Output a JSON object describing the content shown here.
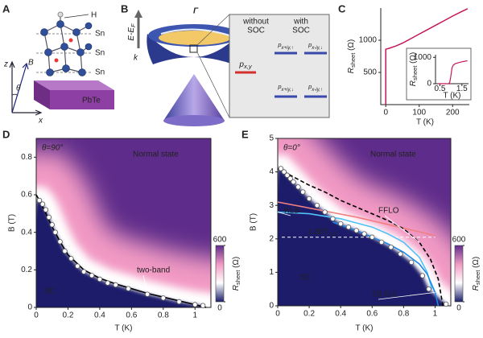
{
  "panel_labels": [
    "A",
    "B",
    "C",
    "D",
    "E"
  ],
  "panel_a": {
    "atom_labels": [
      "H",
      "Sn",
      "Sn",
      "Sn"
    ],
    "axis_labels": [
      "z",
      "B",
      "θ",
      "x"
    ],
    "substrate": "PbTe"
  },
  "panel_b": {
    "point": "Γ",
    "energy_axis": {
      "main": "E-E",
      "sub": "F"
    },
    "momentum_axis": "k",
    "columns": [
      [
        "without",
        "SOC"
      ],
      [
        "with",
        "SOC"
      ]
    ],
    "levels": [
      {
        "main": "p",
        "sub": "x,y"
      },
      {
        "main": "p",
        "sub": "x+iy,↑"
      },
      {
        "main": "p",
        "sub": "x-iy,↓"
      },
      {
        "main": "p",
        "sub": "x+iy,↓"
      },
      {
        "main": "p",
        "sub": "x-iy,↑"
      }
    ]
  },
  "chart_data": [
    {
      "type": "line",
      "xlabel": "T (K)",
      "ylabel": {
        "main": "R",
        "sub": "sheet",
        "unit": " (Ω)"
      },
      "x": [
        0,
        0,
        3,
        10,
        30,
        50,
        75,
        100,
        125,
        150,
        175,
        200,
        225,
        245
      ],
      "values": [
        0,
        860,
        865,
        875,
        910,
        955,
        1025,
        1095,
        1165,
        1235,
        1305,
        1375,
        1440,
        1490
      ],
      "color": "#c2185b",
      "xlim": [
        -15,
        250
      ],
      "ylim": [
        0,
        1500
      ],
      "xticks": [
        0,
        100,
        200
      ],
      "yticks": [
        500,
        1000
      ],
      "inset": {
        "type": "line",
        "xlabel": "T (K)",
        "ylabel": {
          "main": "R",
          "sub": "sheet",
          "unit": " (Ω)"
        },
        "x": [
          0.4,
          0.7,
          0.9,
          0.95,
          1.0,
          1.05,
          1.1,
          1.2,
          1.35,
          1.5,
          1.75
        ],
        "values": [
          0,
          0,
          0,
          60,
          300,
          600,
          700,
          760,
          800,
          830,
          870
        ],
        "color": "#c2185b",
        "xlim": [
          0.3,
          1.8
        ],
        "ylim": [
          0,
          1100
        ],
        "xticks": [
          0.5,
          1.5
        ],
        "yticks": [
          0,
          1000
        ]
      }
    },
    {
      "type": "scatter",
      "xlabel": "T (K)",
      "ylabel": "B (T)",
      "annotations": [
        "θ=90°",
        "Normal state",
        "SC"
      ],
      "x": [
        0.02,
        0.04,
        0.06,
        0.08,
        0.1,
        0.12,
        0.15,
        0.18,
        0.22,
        0.26,
        0.3,
        0.35,
        0.4,
        0.45,
        0.5,
        0.58,
        0.7,
        0.8,
        0.9,
        1.0,
        1.05
      ],
      "values": [
        0.57,
        0.55,
        0.52,
        0.48,
        0.44,
        0.4,
        0.35,
        0.3,
        0.26,
        0.22,
        0.19,
        0.17,
        0.15,
        0.13,
        0.12,
        0.1,
        0.07,
        0.05,
        0.03,
        0.015,
        0.01
      ],
      "marker_color": "#ffffff",
      "series": [
        {
          "name": "two-band",
          "color": "#000000",
          "x": [
            0,
            0.02,
            0.05,
            0.1,
            0.15,
            0.2,
            0.3,
            0.4,
            0.5,
            0.6,
            0.7,
            0.8,
            0.9,
            1.0,
            1.07
          ],
          "values": [
            0.6,
            0.57,
            0.52,
            0.43,
            0.35,
            0.28,
            0.2,
            0.155,
            0.125,
            0.1,
            0.075,
            0.055,
            0.035,
            0.015,
            0
          ]
        }
      ],
      "xlim": [
        0,
        1.1
      ],
      "ylim": [
        0,
        0.9
      ],
      "xticks": [
        0,
        0.2,
        0.4,
        0.6,
        0.8,
        1
      ],
      "yticks": [
        0,
        0.2,
        0.4,
        0.6,
        0.8
      ],
      "colorbar": {
        "label": {
          "main": "R",
          "sub": "sheet",
          "unit": " (Ω)"
        },
        "lim": [
          0,
          600
        ],
        "ticks": [
          0,
          600
        ],
        "colors": [
          "#1b1f6b",
          "#ffffff",
          "#f29ac4",
          "#5e2c8a"
        ]
      }
    },
    {
      "type": "scatter",
      "xlabel": "T (K)",
      "ylabel": "B (T)",
      "annotations": [
        "θ=0°",
        "Normal state",
        "SC"
      ],
      "x": [
        0.02,
        0.04,
        0.06,
        0.08,
        0.1,
        0.13,
        0.16,
        0.2,
        0.25,
        0.3,
        0.35,
        0.4,
        0.45,
        0.5,
        0.55,
        0.6,
        0.66,
        0.72,
        0.78,
        0.85,
        0.92,
        0.96,
        1.07
      ],
      "values": [
        4.1,
        4.0,
        3.9,
        3.8,
        3.7,
        3.55,
        3.4,
        3.2,
        3.0,
        2.8,
        2.6,
        2.45,
        2.35,
        2.25,
        2.15,
        2.05,
        1.9,
        1.75,
        1.55,
        1.3,
        0.9,
        0.5,
        0.05
      ],
      "marker_color": "#ffffff",
      "series": [
        {
          "color": "#f08080",
          "x": [
            0,
            0.5,
            1.0
          ],
          "values": [
            3.1,
            2.65,
            2.1
          ]
        },
        {
          "name": "KLB",
          "color": "#4fc3f7",
          "x": [
            0,
            0.2,
            0.4,
            0.6,
            0.7,
            0.8,
            0.9,
            0.95,
            0.98
          ],
          "values": [
            2.8,
            2.75,
            2.6,
            2.35,
            2.15,
            1.9,
            1.45,
            1.0,
            0.5
          ]
        },
        {
          "name": "FFLO",
          "color": "#000000",
          "dashed": true,
          "x": [
            0,
            0.1,
            0.2,
            0.3,
            0.4,
            0.5,
            0.6,
            0.7,
            0.8,
            0.9,
            0.97,
            1.02,
            1.05
          ],
          "values": [
            4.1,
            3.85,
            3.6,
            3.4,
            3.15,
            2.95,
            2.75,
            2.55,
            2.3,
            1.9,
            1.4,
            0.8,
            0
          ]
        },
        {
          "name": "2D G-L",
          "color": "#1e88e5",
          "x": [
            0.35,
            0.5,
            0.6,
            0.7,
            0.8,
            0.9,
            0.95,
            1.0,
            1.02
          ],
          "values": [
            2.5,
            2.25,
            2.05,
            1.85,
            1.6,
            1.25,
            0.95,
            0.4,
            0
          ]
        }
      ],
      "reference": {
        "label": {
          "main": "1.86T",
          "sub": "c,0"
        },
        "value": 2.05,
        "color": "#ffffff"
      },
      "xlim": [
        0,
        1.1
      ],
      "ylim": [
        0,
        5
      ],
      "xticks": [
        0,
        0.2,
        0.4,
        0.6,
        0.8,
        1
      ],
      "yticks": [
        0,
        1,
        2,
        3,
        4,
        5
      ],
      "colorbar": {
        "label": {
          "main": "R",
          "sub": "sheet",
          "unit": " (Ω)"
        },
        "lim": [
          0,
          600
        ],
        "ticks": [
          0,
          600
        ],
        "colors": [
          "#1b1f6b",
          "#ffffff",
          "#f29ac4",
          "#5e2c8a"
        ]
      }
    }
  ]
}
